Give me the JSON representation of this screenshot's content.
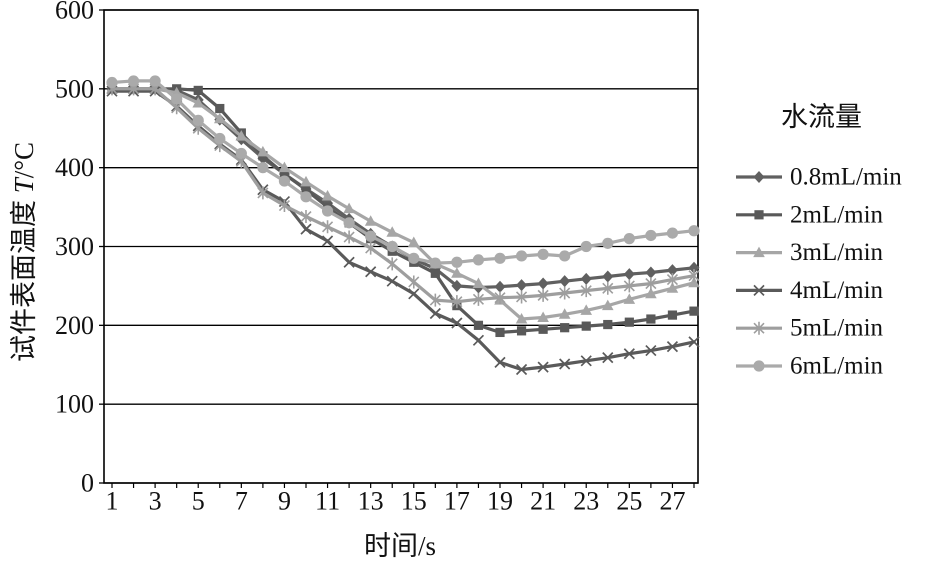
{
  "chart_data": {
    "type": "line",
    "xlabel": "时间/s",
    "ylabel": "试件表面温度 T/°C",
    "x": [
      1,
      2,
      3,
      4,
      5,
      6,
      7,
      8,
      9,
      10,
      11,
      12,
      13,
      14,
      15,
      16,
      17,
      18,
      19,
      20,
      21,
      22,
      23,
      24,
      25,
      26,
      27,
      28
    ],
    "xticks": [
      1,
      3,
      5,
      7,
      9,
      11,
      13,
      15,
      17,
      19,
      21,
      23,
      25,
      27
    ],
    "xlim": [
      1,
      28
    ],
    "ylim": [
      0,
      600
    ],
    "yticks": [
      0,
      100,
      200,
      300,
      400,
      500,
      600
    ],
    "grid": "horizontal",
    "legend": {
      "title": "水流量",
      "position": "right"
    },
    "series": [
      {
        "name": "0.8mL/min",
        "color": "#606060",
        "marker": "diamond",
        "values": [
          500,
          500,
          500,
          498,
          486,
          461,
          436,
          412,
          392,
          373,
          355,
          335,
          316,
          300,
          284,
          272,
          250,
          248,
          249,
          251,
          253,
          256,
          259,
          262,
          265,
          267,
          270,
          273
        ]
      },
      {
        "name": "2mL/min",
        "color": "#595959",
        "marker": "square",
        "values": [
          500,
          500,
          500,
          500,
          498,
          475,
          444,
          415,
          392,
          372,
          350,
          330,
          310,
          294,
          280,
          266,
          225,
          200,
          191,
          193,
          195,
          197,
          199,
          201,
          204,
          208,
          213,
          218
        ]
      },
      {
        "name": "3mL/min",
        "color": "#a6a6a6",
        "marker": "triangle",
        "values": [
          500,
          500,
          500,
          495,
          482,
          462,
          440,
          420,
          400,
          382,
          364,
          348,
          332,
          318,
          305,
          278,
          266,
          253,
          232,
          208,
          210,
          214,
          219,
          225,
          233,
          240,
          247,
          254
        ]
      },
      {
        "name": "4mL/min",
        "color": "#5a5a5a",
        "marker": "x",
        "values": [
          497,
          497,
          497,
          478,
          453,
          430,
          410,
          372,
          357,
          322,
          307,
          280,
          268,
          256,
          240,
          215,
          203,
          181,
          153,
          144,
          147,
          151,
          155,
          159,
          164,
          168,
          173,
          179
        ]
      },
      {
        "name": "5mL/min",
        "color": "#9e9e9e",
        "marker": "asterisk",
        "values": [
          500,
          500,
          500,
          476,
          450,
          428,
          408,
          368,
          352,
          338,
          325,
          312,
          298,
          278,
          255,
          232,
          230,
          233,
          235,
          236,
          238,
          241,
          244,
          247,
          250,
          253,
          258,
          263
        ]
      },
      {
        "name": "6mL/min",
        "color": "#aaaaaa",
        "marker": "circle",
        "values": [
          508,
          510,
          510,
          487,
          460,
          437,
          418,
          400,
          383,
          363,
          345,
          330,
          313,
          300,
          285,
          279,
          280,
          283,
          285,
          288,
          290,
          288,
          300,
          304,
          310,
          314,
          317,
          320
        ]
      }
    ]
  }
}
